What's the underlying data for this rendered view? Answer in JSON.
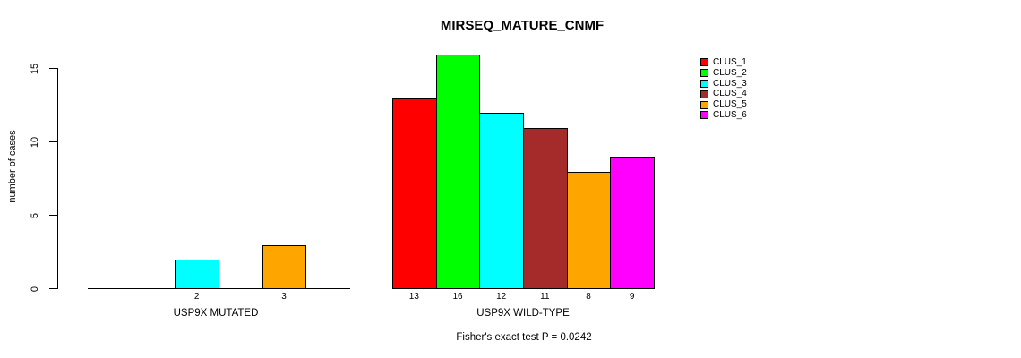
{
  "chart_data": {
    "type": "bar",
    "title": "MIRSEQ_MATURE_CNMF",
    "ylabel": "number of cases",
    "xlabel": "",
    "ylim": [
      0,
      16
    ],
    "yticks": [
      0,
      5,
      10,
      15
    ],
    "grid": false,
    "legend_position": "right",
    "categories": [
      "CLUS_1",
      "CLUS_2",
      "CLUS_3",
      "CLUS_4",
      "CLUS_5",
      "CLUS_6"
    ],
    "colors": [
      "#FF0000",
      "#00FF00",
      "#00FFFF",
      "#A52A2A",
      "#FFA500",
      "#FF00FF"
    ],
    "groups": [
      {
        "label": "USP9X MUTATED",
        "values": [
          0,
          0,
          2,
          0,
          3,
          0
        ]
      },
      {
        "label": "USP9X WILD-TYPE",
        "values": [
          13,
          16,
          12,
          11,
          8,
          9
        ]
      }
    ],
    "bar_value_labels_shown": true,
    "annotation": "Fisher's exact test P = 0.0242"
  }
}
